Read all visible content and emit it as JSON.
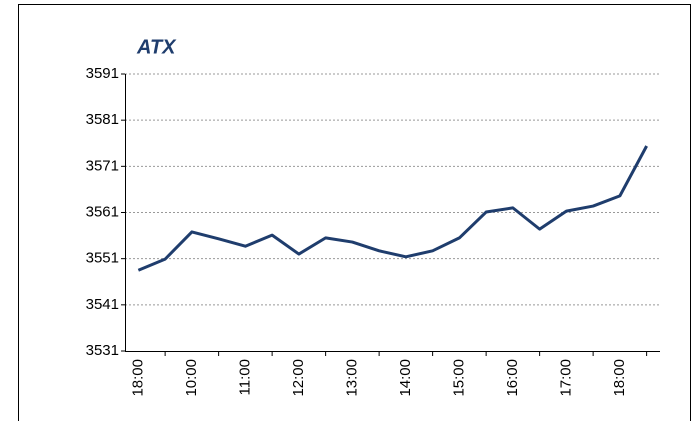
{
  "chart_data": {
    "type": "line",
    "title": "ATX",
    "categories": [
      "18:00",
      null,
      "10:00",
      null,
      "11:00",
      null,
      "12:00",
      null,
      "13:00",
      null,
      "14:00",
      null,
      "15:00",
      null,
      "16:00",
      null,
      "17:00",
      null,
      "18:00",
      null
    ],
    "series": [
      {
        "name": "ATX",
        "color": "#1f3d6d",
        "values": [
          3548.5,
          3550.9,
          3556.8,
          3555.3,
          3553.7,
          3556.1,
          3552.0,
          3555.5,
          3554.6,
          3552.7,
          3551.4,
          3552.7,
          3555.5,
          3561.1,
          3562.0,
          3557.4,
          3561.3,
          3562.4,
          3564.6,
          3575.4
        ]
      }
    ],
    "ylim": [
      3531,
      3591
    ],
    "yticks": [
      3531,
      3541,
      3551,
      3561,
      3571,
      3581,
      3591
    ],
    "grid": true
  }
}
